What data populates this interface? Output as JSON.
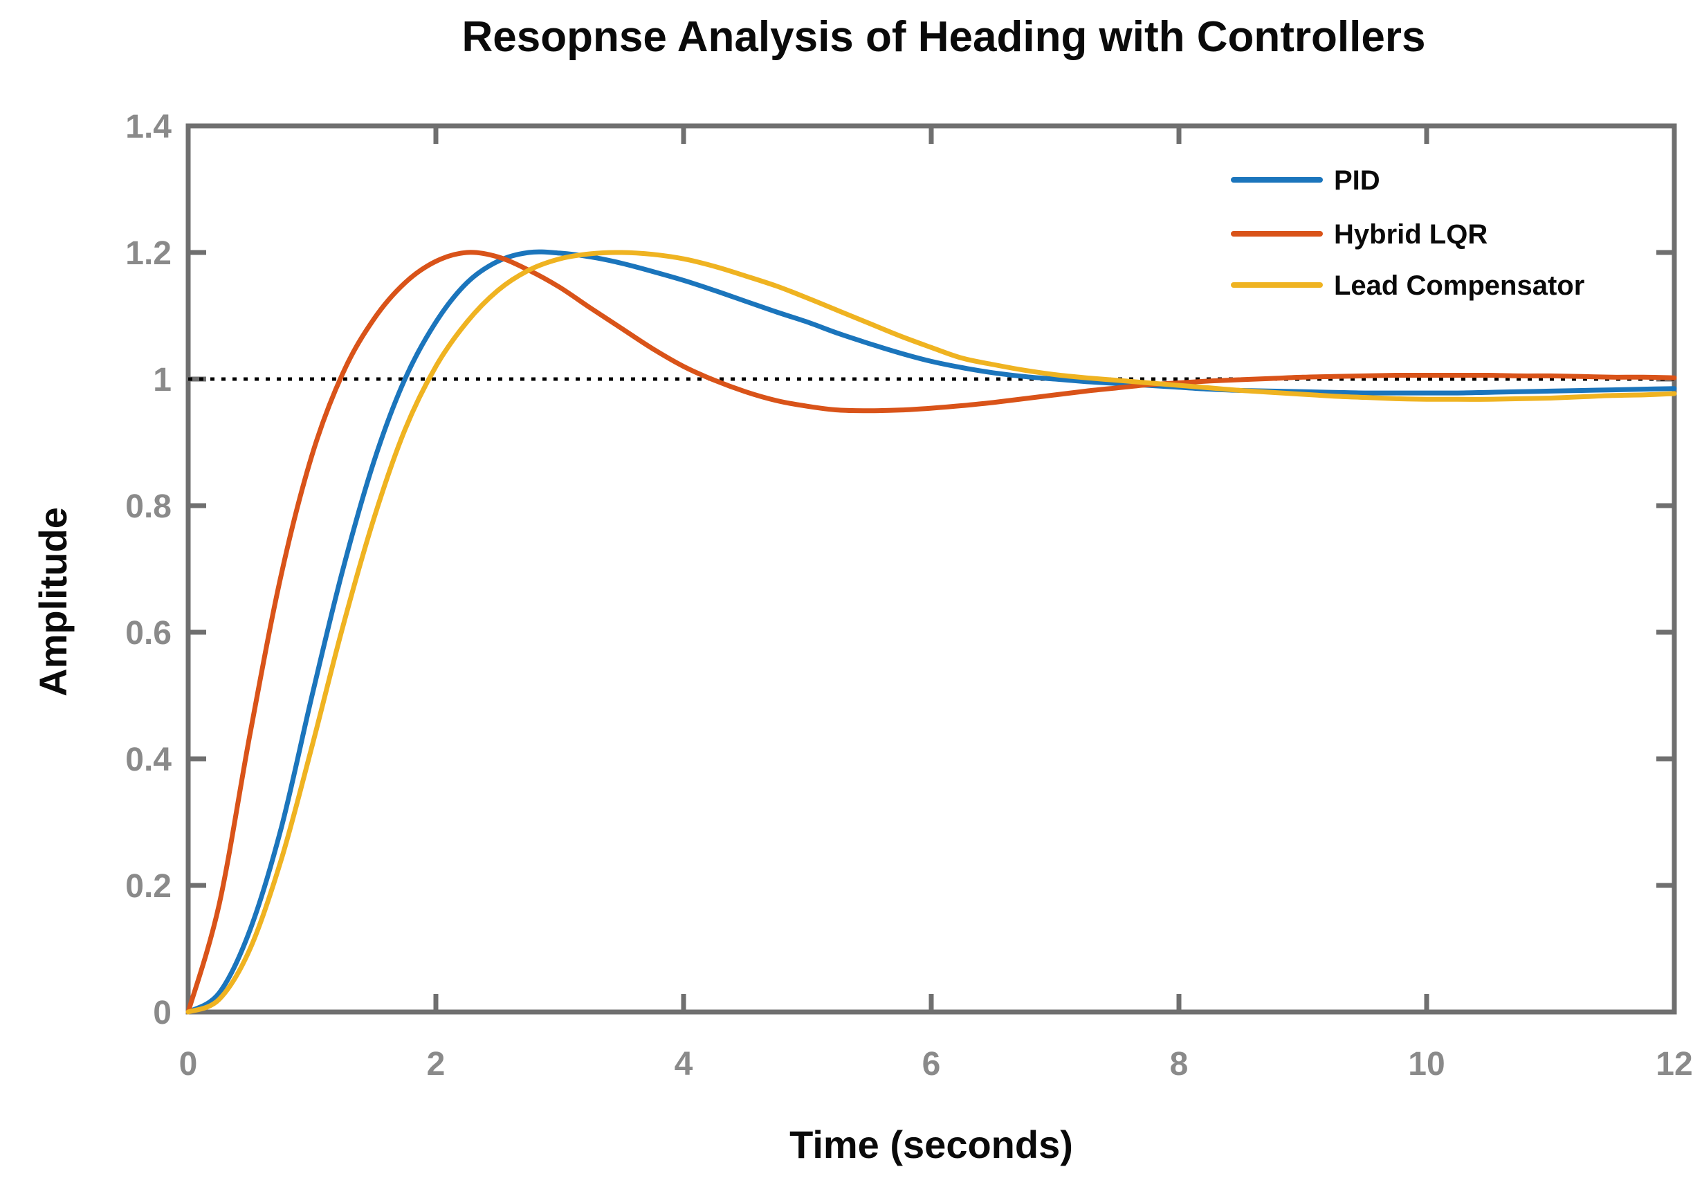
{
  "title": "Resopnse Analysis of Heading with Controllers",
  "colors": {
    "background": "#FFFFFF",
    "axis": "#6F6F6F",
    "tick_label": "#8A8A8A",
    "text": "#0A0A0A",
    "reference_line": "#000000"
  },
  "chart_data": {
    "type": "line",
    "title": "Resopnse Analysis of Heading with Controllers",
    "xlabel": "Time (seconds)",
    "ylabel": "Amplitude",
    "xlim": [
      0,
      12
    ],
    "ylim": [
      0,
      1.4
    ],
    "x_ticks": [
      0,
      2,
      4,
      6,
      8,
      10,
      12
    ],
    "x_tick_labels": [
      "0",
      "2",
      "4",
      "6",
      "8",
      "10",
      "12"
    ],
    "y_ticks": [
      0,
      0.2,
      0.4,
      0.6,
      0.8,
      1,
      1.2,
      1.4
    ],
    "y_tick_labels": [
      "0",
      "0.2",
      "0.4",
      "0.6",
      "0.8",
      "1",
      "1.2",
      "1.4"
    ],
    "grid": false,
    "box": true,
    "legend_position": "top-right-inside",
    "legend_has_border": false,
    "reference_line": {
      "y": 1.0,
      "style": "dotted",
      "color": "#000000"
    },
    "x_start": 0,
    "x_step": 0.25,
    "series": [
      {
        "name": "PID",
        "color": "#1B75BC",
        "peak": {
          "t": 2.75,
          "value": 1.2
        },
        "values": [
          0.0,
          0.03,
          0.13,
          0.29,
          0.5,
          0.7,
          0.87,
          1.0,
          1.09,
          1.152,
          1.186,
          1.2,
          1.199,
          1.193,
          1.183,
          1.17,
          1.156,
          1.14,
          1.123,
          1.106,
          1.09,
          1.072,
          1.056,
          1.041,
          1.028,
          1.018,
          1.01,
          1.004,
          1.0,
          0.996,
          0.993,
          0.99,
          0.987,
          0.984,
          0.982,
          0.981,
          0.98,
          0.979,
          0.978,
          0.978,
          0.978,
          0.978,
          0.979,
          0.98,
          0.981,
          0.982,
          0.983,
          0.984,
          0.985
        ]
      },
      {
        "name": "Hybrid LQR",
        "color": "#D95319",
        "peak": {
          "t": 2.25,
          "value": 1.2
        },
        "values": [
          0.0,
          0.17,
          0.44,
          0.69,
          0.88,
          1.01,
          1.095,
          1.152,
          1.186,
          1.2,
          1.193,
          1.172,
          1.145,
          1.112,
          1.08,
          1.048,
          1.02,
          0.998,
          0.98,
          0.966,
          0.957,
          0.951,
          0.95,
          0.951,
          0.954,
          0.958,
          0.963,
          0.969,
          0.975,
          0.981,
          0.986,
          0.991,
          0.994,
          0.997,
          0.999,
          1.001,
          1.003,
          1.004,
          1.005,
          1.006,
          1.006,
          1.006,
          1.006,
          1.005,
          1.005,
          1.004,
          1.003,
          1.003,
          1.002
        ]
      },
      {
        "name": "Lead Compensator",
        "color": "#EFB321",
        "peak": {
          "t": 3.5,
          "value": 1.2
        },
        "values": [
          0.0,
          0.02,
          0.1,
          0.24,
          0.42,
          0.61,
          0.78,
          0.92,
          1.02,
          1.09,
          1.14,
          1.172,
          1.19,
          1.198,
          1.2,
          1.197,
          1.19,
          1.178,
          1.163,
          1.147,
          1.128,
          1.108,
          1.088,
          1.068,
          1.05,
          1.033,
          1.023,
          1.014,
          1.007,
          1.002,
          0.998,
          0.994,
          0.99,
          0.986,
          0.982,
          0.979,
          0.976,
          0.973,
          0.971,
          0.969,
          0.968,
          0.968,
          0.968,
          0.969,
          0.97,
          0.972,
          0.974,
          0.975,
          0.977
        ]
      }
    ]
  }
}
